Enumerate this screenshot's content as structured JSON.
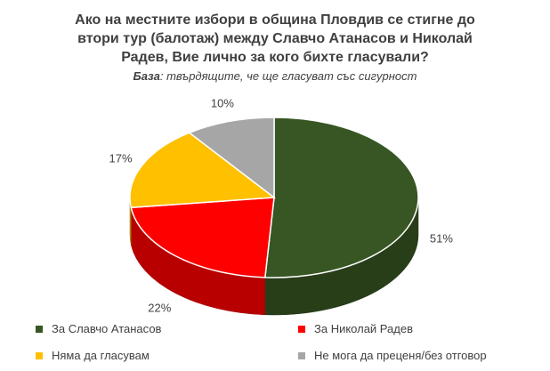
{
  "title_lines": [
    "Ако на местните избори в община Пловдив се стигне до",
    "втори тур (балотаж) между Славчо Атанасов и Николай",
    "Радев, Вие лично за кого бихте гласували?"
  ],
  "subtitle": {
    "label": "База",
    "text": ": твърдящите, че ще гласуват със сигурност"
  },
  "chart_data": {
    "type": "pie",
    "style": "3d",
    "categories": [
      "За Славчо Атанасов",
      "За Николай Радев",
      "Няма да гласувам",
      "Не мога да преценя/без отговор"
    ],
    "values": [
      51,
      22,
      17,
      10
    ],
    "data_labels": [
      "51%",
      "22%",
      "17%",
      "10%"
    ],
    "colors": [
      "#375623",
      "#ff0000",
      "#ffc000",
      "#a6a6a6"
    ],
    "legend_position": "bottom"
  }
}
